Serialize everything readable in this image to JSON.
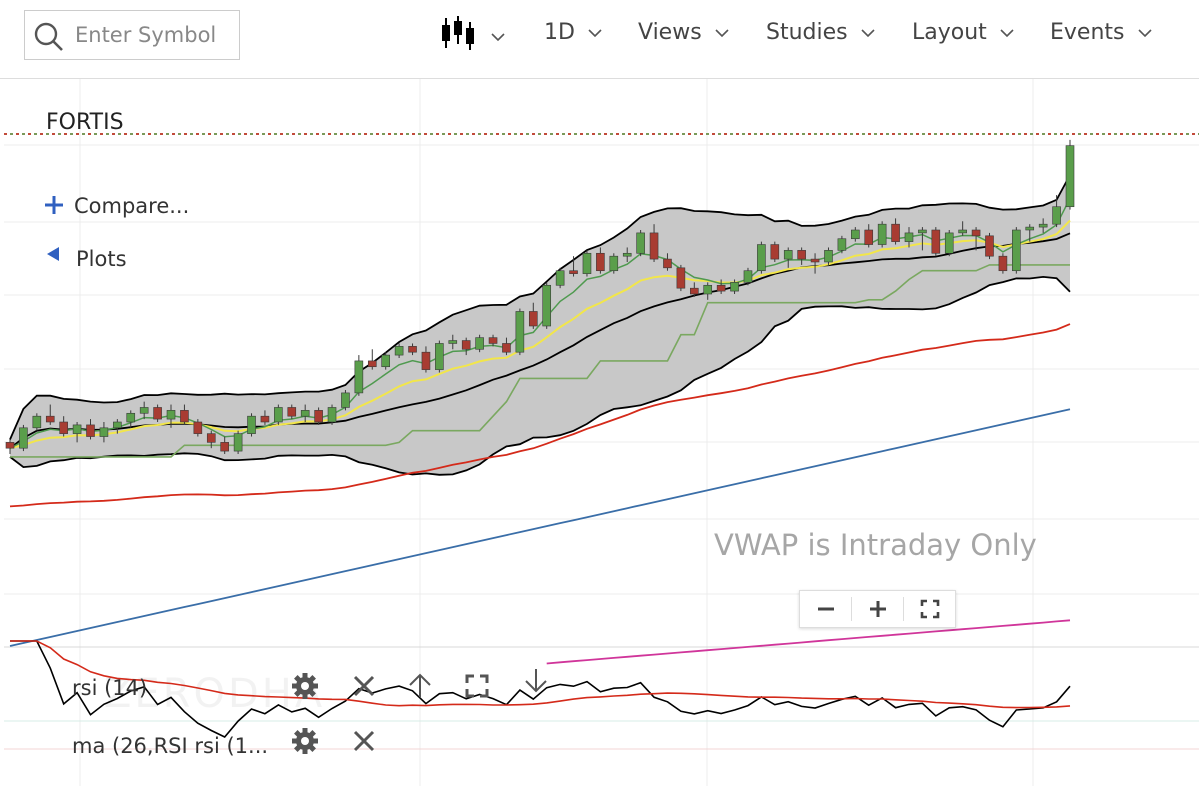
{
  "search": {
    "placeholder": "Enter Symbol"
  },
  "toolbar": {
    "chart_type_icon": "candlestick-icon",
    "interval": "1D",
    "views": "Views",
    "studies": "Studies",
    "layout": "Layout",
    "events": "Events"
  },
  "chart": {
    "symbol": "FORTIS",
    "compare_label": "Compare...",
    "plots_label": "Plots",
    "vwap_notice": "VWAP is Intraday Only",
    "watermark": "ZERODHA",
    "colors": {
      "up_candle": "#5a9e4b",
      "down_candle": "#a83c32",
      "band_fill": "#c8c8c8",
      "band_line": "#000000",
      "ma_red": "#d42a1a",
      "ma_blue": "#3a6ea8",
      "ma_magenta": "#d0359a",
      "ma_yellow": "#f2e64a",
      "ma_green": "#4f9a4f",
      "step_line": "#7aa860"
    }
  },
  "panels": [
    {
      "label": "rsi (14)",
      "controls": [
        "gear-icon",
        "close-icon",
        "arrow-up-icon",
        "expand-icon",
        "arrow-down-icon"
      ]
    },
    {
      "label": "ma (26,RSI rsi (1...",
      "controls": [
        "gear-icon",
        "close-icon"
      ]
    }
  ],
  "zoom": {
    "out": "zoom-out",
    "in": "zoom-in",
    "fit": "fit-screen"
  },
  "chart_data": {
    "type": "candlestick",
    "symbol": "FORTIS",
    "interval": "1D",
    "candles_ohlc": [
      [
        190,
        191,
        186,
        188
      ],
      [
        188,
        196,
        187,
        195
      ],
      [
        195,
        200,
        194,
        199
      ],
      [
        199,
        203,
        196,
        197
      ],
      [
        197,
        199,
        192,
        193
      ],
      [
        193,
        197,
        190,
        196
      ],
      [
        196,
        198,
        191,
        192
      ],
      [
        192,
        197,
        190,
        195
      ],
      [
        195,
        198,
        193,
        197
      ],
      [
        197,
        201,
        195,
        200
      ],
      [
        200,
        204,
        198,
        202
      ],
      [
        202,
        203,
        197,
        198
      ],
      [
        198,
        203,
        195,
        201
      ],
      [
        201,
        203,
        196,
        197
      ],
      [
        197,
        198,
        192,
        193
      ],
      [
        193,
        194,
        188,
        190
      ],
      [
        190,
        192,
        186,
        187
      ],
      [
        187,
        194,
        186,
        193
      ],
      [
        193,
        200,
        192,
        199
      ],
      [
        199,
        201,
        196,
        197
      ],
      [
        197,
        203,
        196,
        202
      ],
      [
        202,
        203,
        198,
        199
      ],
      [
        199,
        203,
        197,
        201
      ],
      [
        201,
        202,
        196,
        197
      ],
      [
        197,
        203,
        196,
        202
      ],
      [
        202,
        208,
        201,
        207
      ],
      [
        207,
        220,
        206,
        218
      ],
      [
        218,
        222,
        215,
        216
      ],
      [
        216,
        221,
        215,
        220
      ],
      [
        220,
        224,
        219,
        223
      ],
      [
        223,
        224,
        220,
        221
      ],
      [
        221,
        223,
        214,
        215
      ],
      [
        215,
        225,
        214,
        224
      ],
      [
        224,
        227,
        222,
        225
      ],
      [
        225,
        226,
        220,
        222
      ],
      [
        222,
        227,
        221,
        226
      ],
      [
        226,
        227,
        223,
        224
      ],
      [
        224,
        226,
        220,
        221
      ],
      [
        221,
        236,
        220,
        235
      ],
      [
        235,
        238,
        229,
        230
      ],
      [
        230,
        245,
        229,
        244
      ],
      [
        244,
        250,
        243,
        249
      ],
      [
        249,
        254,
        247,
        248
      ],
      [
        248,
        256,
        247,
        255
      ],
      [
        255,
        257,
        248,
        249
      ],
      [
        249,
        255,
        248,
        254
      ],
      [
        254,
        257,
        252,
        255
      ],
      [
        255,
        263,
        254,
        262
      ],
      [
        262,
        265,
        252,
        253
      ],
      [
        253,
        255,
        249,
        250
      ],
      [
        250,
        251,
        242,
        243
      ],
      [
        243,
        245,
        240,
        241
      ],
      [
        241,
        245,
        239,
        244
      ],
      [
        244,
        246,
        241,
        242
      ],
      [
        242,
        246,
        241,
        245
      ],
      [
        245,
        250,
        244,
        249
      ],
      [
        249,
        259,
        248,
        258
      ],
      [
        258,
        259,
        252,
        253
      ],
      [
        253,
        257,
        250,
        256
      ],
      [
        256,
        257,
        251,
        253
      ],
      [
        253,
        255,
        248,
        252
      ],
      [
        252,
        257,
        251,
        256
      ],
      [
        256,
        261,
        255,
        260
      ],
      [
        260,
        264,
        259,
        263
      ],
      [
        263,
        265,
        257,
        258
      ],
      [
        258,
        266,
        257,
        265
      ],
      [
        265,
        267,
        258,
        259
      ],
      [
        259,
        264,
        257,
        262
      ],
      [
        262,
        264,
        256,
        263
      ],
      [
        263,
        264,
        254,
        255
      ],
      [
        255,
        263,
        254,
        262
      ],
      [
        262,
        266,
        261,
        263
      ],
      [
        263,
        264,
        256,
        261
      ],
      [
        261,
        262,
        253,
        254
      ],
      [
        254,
        255,
        248,
        249
      ],
      [
        249,
        264,
        248,
        263
      ],
      [
        263,
        265,
        259,
        264
      ],
      [
        264,
        267,
        262,
        265
      ],
      [
        265,
        275,
        264,
        271
      ],
      [
        271,
        294,
        270,
        292
      ]
    ],
    "overlays": [
      "bollinger_bands",
      "moving_averages",
      "step_line"
    ],
    "lower_panels": [
      "rsi (14)",
      "ma (26,RSI rsi (1..."
    ]
  }
}
